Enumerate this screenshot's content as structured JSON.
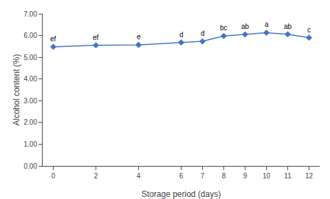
{
  "chart_data": {
    "type": "line",
    "x": [
      0,
      2,
      4,
      6,
      7,
      8,
      9,
      10,
      11,
      12
    ],
    "values": [
      5.48,
      5.55,
      5.57,
      5.68,
      5.73,
      5.98,
      6.05,
      6.13,
      6.06,
      5.9
    ],
    "annotations": [
      "ef",
      "ef",
      "e",
      "d",
      "d",
      "bc",
      "ab",
      "a",
      "ab",
      "c"
    ],
    "color": "#4472C4",
    "marker": "diamond",
    "xlabel": "Storage period (days)",
    "ylabel": "Alcohol content (%)",
    "xlim": [
      -0.5,
      12.5
    ],
    "ylim": [
      0.0,
      7.0
    ],
    "xticks": [
      0,
      2,
      4,
      6,
      7,
      8,
      9,
      10,
      11,
      12
    ],
    "yticks": [
      {
        "value": 0,
        "label": "0.00"
      },
      {
        "value": 1,
        "label": "1.00"
      },
      {
        "value": 2,
        "label": "2.00"
      },
      {
        "value": 3,
        "label": "3.00"
      },
      {
        "value": 4,
        "label": "4.00"
      },
      {
        "value": 5,
        "label": "5.00"
      },
      {
        "value": 6,
        "label": "6.00"
      },
      {
        "value": 7,
        "label": "7.00"
      }
    ],
    "grid": false
  }
}
